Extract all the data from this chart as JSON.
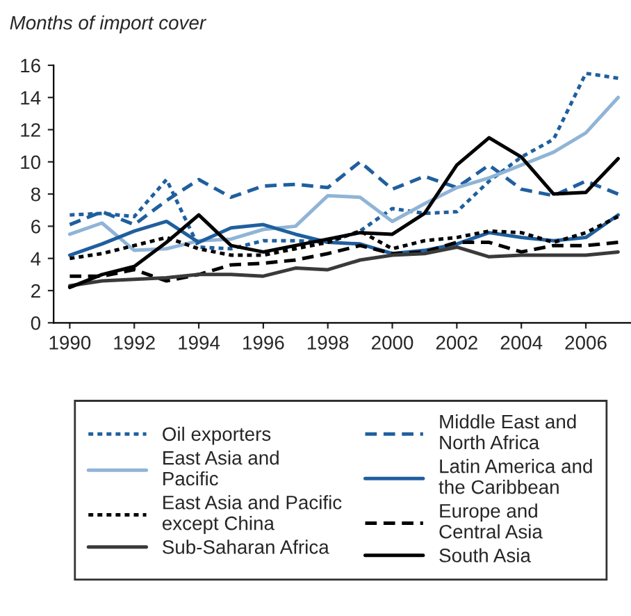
{
  "chart_data": {
    "type": "line",
    "ylabel": "Months of import cover",
    "x": [
      1990,
      1991,
      1992,
      1993,
      1994,
      1995,
      1996,
      1997,
      1998,
      1999,
      2000,
      2001,
      2002,
      2003,
      2004,
      2005,
      2006,
      2007
    ],
    "xlim": [
      1989.5,
      2007.4
    ],
    "xticks": [
      1990,
      1992,
      1994,
      1996,
      1998,
      2000,
      2002,
      2004,
      2006
    ],
    "ylim": [
      0,
      16
    ],
    "yticks": [
      0,
      2,
      4,
      6,
      8,
      10,
      12,
      14,
      16
    ],
    "grid": false,
    "legend": "bottom",
    "series": [
      {
        "name": "Oil exporters",
        "color": "#1f5f9e",
        "line_style": "dotted",
        "values": [
          6.7,
          6.8,
          6.6,
          8.9,
          4.7,
          4.6,
          5.1,
          5.1,
          5.0,
          5.7,
          7.1,
          6.8,
          6.9,
          8.8,
          10.3,
          11.4,
          15.5,
          15.2
        ]
      },
      {
        "name": "Middle East and\nNorth Africa",
        "color": "#1f5f9e",
        "line_style": "dashed",
        "values": [
          6.1,
          6.9,
          6.1,
          7.6,
          8.9,
          7.8,
          8.5,
          8.6,
          8.4,
          10.0,
          8.3,
          9.1,
          8.4,
          9.8,
          8.3,
          7.9,
          8.8,
          8.0
        ]
      },
      {
        "name": "East Asia and\nPacific",
        "color": "#8fb4d6",
        "line_style": "solid",
        "values": [
          5.5,
          6.2,
          4.5,
          4.6,
          5.1,
          5.2,
          5.8,
          6.0,
          7.9,
          7.8,
          6.3,
          7.4,
          8.4,
          9.0,
          9.8,
          10.6,
          11.8,
          14.0
        ]
      },
      {
        "name": "Latin America and\nthe Caribbean",
        "color": "#1f5f9e",
        "line_style": "solid",
        "values": [
          4.2,
          4.9,
          5.7,
          6.3,
          5.0,
          5.9,
          6.1,
          5.5,
          5.0,
          4.9,
          4.3,
          4.5,
          4.9,
          5.6,
          5.3,
          5.1,
          5.3,
          6.7
        ]
      },
      {
        "name": "East Asia and Pacific\nexcept China",
        "color": "#000000",
        "line_style": "dotted",
        "values": [
          4.0,
          4.3,
          4.8,
          5.3,
          4.6,
          4.2,
          4.2,
          4.6,
          5.0,
          5.7,
          4.6,
          5.1,
          5.3,
          5.7,
          5.6,
          5.0,
          5.6,
          6.6
        ]
      },
      {
        "name": "Europe and\nCentral Asia",
        "color": "#000000",
        "line_style": "dashed",
        "values": [
          2.9,
          2.9,
          3.3,
          2.6,
          3.0,
          3.6,
          3.7,
          3.9,
          4.3,
          4.8,
          4.3,
          4.4,
          5.0,
          5.0,
          4.4,
          4.8,
          4.8,
          5.0
        ]
      },
      {
        "name": "Sub-Saharan Africa",
        "color": "#3a3a3a",
        "line_style": "solid",
        "values": [
          2.3,
          2.6,
          2.7,
          2.8,
          3.0,
          3.0,
          2.9,
          3.4,
          3.3,
          3.9,
          4.2,
          4.3,
          4.7,
          4.1,
          4.2,
          4.2,
          4.2,
          4.4
        ]
      },
      {
        "name": "South Asia",
        "color": "#000000",
        "line_style": "solid",
        "values": [
          2.2,
          3.0,
          3.5,
          5.0,
          6.7,
          4.8,
          4.4,
          4.8,
          5.2,
          5.6,
          5.5,
          6.8,
          9.8,
          11.5,
          10.3,
          8.0,
          8.1,
          10.2
        ]
      }
    ]
  }
}
